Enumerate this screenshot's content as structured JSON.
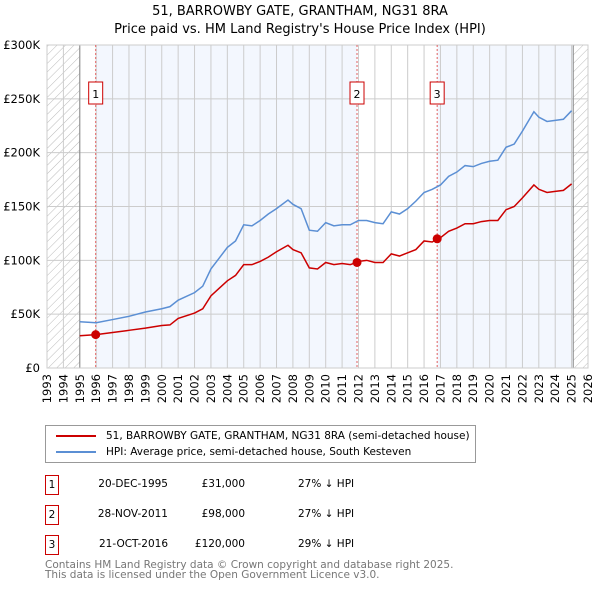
{
  "chart_data": {
    "type": "line",
    "title": "51, BARROWBY GATE, GRANTHAM, NG31 8RA",
    "subtitle": "Price paid vs. HM Land Registry's House Price Index (HPI)",
    "xlim": [
      1993,
      2026
    ],
    "ylim": [
      0,
      300000
    ],
    "x_ticks": [
      1993,
      1994,
      1995,
      1996,
      1997,
      1998,
      1999,
      2000,
      2001,
      2002,
      2003,
      2004,
      2005,
      2006,
      2007,
      2008,
      2009,
      2010,
      2011,
      2012,
      2013,
      2014,
      2015,
      2016,
      2017,
      2018,
      2019,
      2020,
      2021,
      2022,
      2023,
      2024,
      2025,
      2026
    ],
    "y_ticks": [
      {
        "v": 0,
        "label": "£0"
      },
      {
        "v": 50000,
        "label": "£50K"
      },
      {
        "v": 100000,
        "label": "£100K"
      },
      {
        "v": 150000,
        "label": "£150K"
      },
      {
        "v": 200000,
        "label": "£200K"
      },
      {
        "v": 250000,
        "label": "£250K"
      },
      {
        "v": 300000,
        "label": "£300K"
      }
    ],
    "grid": true,
    "data_range": [
      1995,
      2025.1
    ],
    "series": [
      {
        "name": "51, BARROWBY GATE, GRANTHAM, NG31 8RA (semi-detached house)",
        "color": "#cc0000",
        "x": [
          1995,
          1996,
          1997,
          1998,
          1999,
          2000,
          2000.5,
          2001,
          2002,
          2002.5,
          2003,
          2003.5,
          2004,
          2004.5,
          2005,
          2005.5,
          2006,
          2006.5,
          2007,
          2007.7,
          2008,
          2008.5,
          2009,
          2009.5,
          2010,
          2010.5,
          2011,
          2011.5,
          2011.9,
          2012,
          2012.5,
          2013,
          2013.5,
          2014,
          2014.5,
          2015,
          2015.5,
          2016,
          2016.5,
          2016.8,
          2017,
          2017.5,
          2018,
          2018.5,
          2019,
          2019.5,
          2020,
          2020.5,
          2021,
          2021.5,
          2022,
          2022.7,
          2023,
          2023.5,
          2024,
          2024.5,
          2025
        ],
        "y": [
          30000,
          31000,
          33000,
          35000,
          37000,
          39500,
          40000,
          46000,
          51000,
          55000,
          67000,
          74000,
          81000,
          86000,
          96000,
          96000,
          99000,
          103000,
          108000,
          114000,
          110000,
          107000,
          93000,
          92000,
          98000,
          96000,
          97000,
          96000,
          98000,
          99000,
          100000,
          98000,
          98000,
          106000,
          104000,
          107000,
          110000,
          118000,
          117000,
          120000,
          121000,
          127000,
          130000,
          134000,
          134000,
          136000,
          137000,
          137000,
          147000,
          150000,
          158000,
          170000,
          166000,
          163000,
          164000,
          165000,
          171000
        ]
      },
      {
        "name": "HPI: Average price, semi-detached house, South Kesteven",
        "color": "#5b8fd4",
        "x": [
          1995,
          1996,
          1997,
          1998,
          1999,
          2000,
          2000.5,
          2001,
          2002,
          2002.5,
          2003,
          2003.5,
          2004,
          2004.5,
          2005,
          2005.5,
          2006,
          2006.5,
          2007,
          2007.7,
          2008,
          2008.5,
          2009,
          2009.5,
          2010,
          2010.5,
          2011,
          2011.5,
          2012,
          2012.5,
          2013,
          2013.5,
          2014,
          2014.5,
          2015,
          2015.5,
          2016,
          2016.5,
          2017,
          2017.5,
          2018,
          2018.5,
          2019,
          2019.5,
          2020,
          2020.5,
          2021,
          2021.5,
          2022,
          2022.7,
          2023,
          2023.5,
          2024,
          2024.5,
          2025
        ],
        "y": [
          43000,
          42000,
          45000,
          48000,
          52000,
          55000,
          57000,
          63000,
          70000,
          76000,
          92000,
          102000,
          112000,
          118000,
          133000,
          132000,
          137000,
          143000,
          148000,
          156000,
          152000,
          148000,
          128000,
          127000,
          135000,
          132000,
          133000,
          133000,
          137000,
          137000,
          135000,
          134000,
          145000,
          143000,
          148000,
          155000,
          163000,
          166000,
          170000,
          178000,
          182000,
          188000,
          187000,
          190000,
          192000,
          193000,
          205000,
          208000,
          220000,
          238000,
          233000,
          229000,
          230000,
          231000,
          239000
        ]
      }
    ],
    "sales": [
      {
        "n": "1",
        "x": 1995.97,
        "date": "20-DEC-1995",
        "price": 31000,
        "price_label": "£31,000",
        "hpi": "27% ↓ HPI"
      },
      {
        "n": "2",
        "x": 2011.91,
        "date": "28-NOV-2011",
        "price": 98000,
        "price_label": "£98,000",
        "hpi": "27% ↓ HPI"
      },
      {
        "n": "3",
        "x": 2016.8,
        "date": "21-OCT-2016",
        "price": 120000,
        "price_label": "£120,000",
        "hpi": "29% ↓ HPI"
      }
    ]
  },
  "footer": {
    "line1": "Contains HM Land Registry data © Crown copyright and database right 2025.",
    "line2": "This data is licensed under the Open Government Licence v3.0."
  }
}
